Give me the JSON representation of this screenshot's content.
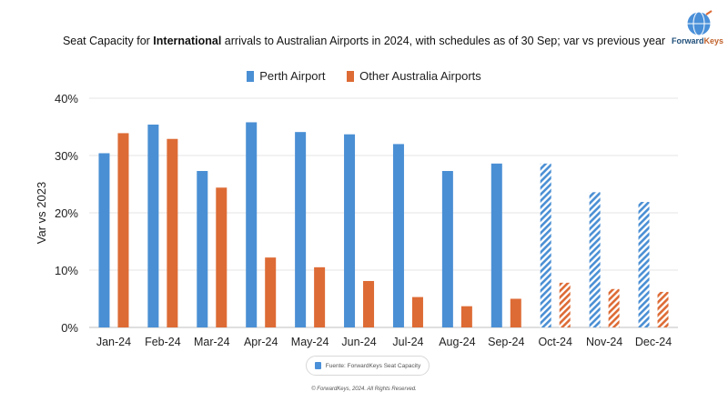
{
  "header": {
    "title_pre": "Seat Capacity for ",
    "title_bold": "International",
    "title_post": " arrivals to Australian Airports in 2024, with schedules as of 30 Sep; var vs previous year",
    "brand_name_1": "Forward",
    "brand_name_2": "Keys"
  },
  "legend": {
    "items": [
      {
        "label": "Perth Airport",
        "color": "#4a8fd4"
      },
      {
        "label": "Other Australia Airports",
        "color": "#dd6b35"
      }
    ]
  },
  "footer": {
    "source": "Fuente: ForwardKeys Seat Capacity",
    "copyright": "© ForwardKeys, 2024. All Rights Reserved."
  },
  "chart_data": {
    "type": "bar",
    "title": "Seat Capacity for International arrivals to Australian Airports in 2024, with schedules as of 30 Sep; var vs previous year",
    "xlabel": "",
    "ylabel": "Var vs 2023",
    "ylim": [
      0,
      40
    ],
    "yticks": [
      0,
      10,
      20,
      30,
      40
    ],
    "ytick_labels": [
      "0%",
      "10%",
      "20%",
      "30%",
      "40%"
    ],
    "grid": true,
    "legend_position": "top-center",
    "categories": [
      "Jan-24",
      "Feb-24",
      "Mar-24",
      "Apr-24",
      "May-24",
      "Jun-24",
      "Jul-24",
      "Aug-24",
      "Sep-24",
      "Oct-24",
      "Nov-24",
      "Dec-24"
    ],
    "forecast_from_index": 9,
    "series": [
      {
        "name": "Perth Airport",
        "color": "#4a8fd4",
        "values": [
          30.4,
          35.4,
          27.3,
          35.8,
          34.1,
          33.7,
          32.0,
          27.3,
          28.6,
          28.6,
          23.6,
          21.9
        ]
      },
      {
        "name": "Other Australia Airports",
        "color": "#dd6b35",
        "values": [
          33.9,
          32.9,
          24.4,
          12.2,
          10.5,
          8.1,
          5.3,
          3.7,
          5.0,
          7.8,
          6.7,
          6.2
        ]
      }
    ]
  }
}
